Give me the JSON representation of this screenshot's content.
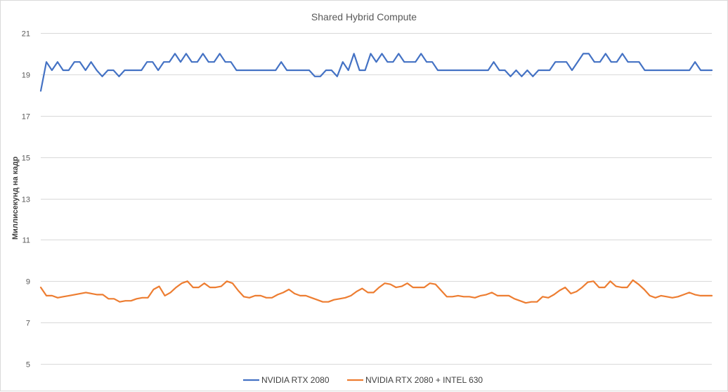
{
  "chart_data": {
    "type": "line",
    "title": "Shared Hybrid Compute",
    "xlabel": "",
    "ylabel": "Миллисекунд на кадр",
    "ylim": [
      5,
      21
    ],
    "yticks": [
      5,
      7,
      9,
      11,
      13,
      15,
      17,
      19,
      21
    ],
    "grid": true,
    "legend_position": "bottom",
    "series": [
      {
        "name": "NVIDIA RTX 2080",
        "color": "#4472C4",
        "values": [
          18.2,
          19.6,
          19.2,
          19.6,
          19.2,
          19.2,
          19.6,
          19.6,
          19.2,
          19.6,
          19.2,
          18.9,
          19.2,
          19.2,
          18.9,
          19.2,
          19.2,
          19.2,
          19.2,
          19.6,
          19.6,
          19.2,
          19.6,
          19.6,
          20.0,
          19.6,
          20.0,
          19.6,
          19.6,
          20.0,
          19.6,
          19.6,
          20.0,
          19.6,
          19.6,
          19.2,
          19.2,
          19.2,
          19.2,
          19.2,
          19.2,
          19.2,
          19.2,
          19.6,
          19.2,
          19.2,
          19.2,
          19.2,
          19.2,
          18.9,
          18.9,
          19.2,
          19.2,
          18.9,
          19.6,
          19.2,
          20.0,
          19.2,
          19.2,
          20.0,
          19.6,
          20.0,
          19.6,
          19.6,
          20.0,
          19.6,
          19.6,
          19.6,
          20.0,
          19.6,
          19.6,
          19.2,
          19.2,
          19.2,
          19.2,
          19.2,
          19.2,
          19.2,
          19.2,
          19.2,
          19.2,
          19.6,
          19.2,
          19.2,
          18.9,
          19.2,
          18.9,
          19.2,
          18.9,
          19.2,
          19.2,
          19.2,
          19.6,
          19.6,
          19.6,
          19.2,
          19.6,
          20.0,
          20.0,
          19.6,
          19.6,
          20.0,
          19.6,
          19.6,
          20.0,
          19.6,
          19.6,
          19.6,
          19.2,
          19.2,
          19.2,
          19.2,
          19.2,
          19.2,
          19.2,
          19.2,
          19.2,
          19.6,
          19.2,
          19.2,
          19.2
        ]
      },
      {
        "name": "NVIDIA RTX 2080 + INTEL 630",
        "color": "#ED7D31",
        "values": [
          8.7,
          8.3,
          8.3,
          8.2,
          8.25,
          8.3,
          8.35,
          8.4,
          8.45,
          8.4,
          8.35,
          8.35,
          8.15,
          8.15,
          8.0,
          8.05,
          8.05,
          8.15,
          8.2,
          8.2,
          8.6,
          8.75,
          8.3,
          8.45,
          8.7,
          8.9,
          9.0,
          8.7,
          8.7,
          8.9,
          8.7,
          8.7,
          8.75,
          9.0,
          8.9,
          8.55,
          8.25,
          8.2,
          8.3,
          8.3,
          8.2,
          8.2,
          8.35,
          8.45,
          8.6,
          8.4,
          8.3,
          8.3,
          8.2,
          8.1,
          8.0,
          8.0,
          8.1,
          8.15,
          8.2,
          8.3,
          8.5,
          8.65,
          8.45,
          8.45,
          8.7,
          8.9,
          8.85,
          8.7,
          8.75,
          8.9,
          8.7,
          8.7,
          8.7,
          8.9,
          8.85,
          8.55,
          8.25,
          8.25,
          8.3,
          8.25,
          8.25,
          8.2,
          8.3,
          8.35,
          8.45,
          8.3,
          8.3,
          8.3,
          8.15,
          8.05,
          7.95,
          8.0,
          8.0,
          8.25,
          8.2,
          8.35,
          8.55,
          8.7,
          8.4,
          8.5,
          8.7,
          8.95,
          9.0,
          8.7,
          8.7,
          9.0,
          8.75,
          8.7,
          8.7,
          9.05,
          8.85,
          8.6,
          8.3,
          8.2,
          8.3,
          8.25,
          8.2,
          8.25,
          8.35,
          8.45,
          8.35,
          8.3,
          8.3,
          8.3
        ]
      }
    ]
  }
}
